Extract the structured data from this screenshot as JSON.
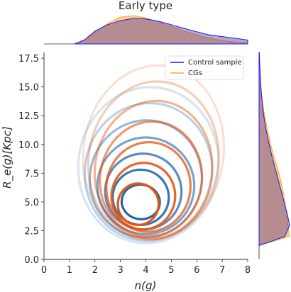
{
  "chart_data": {
    "type": "contour",
    "title": "Early type",
    "xlabel": "n(g)",
    "ylabel": "R_e(g)[Kpc]",
    "xlim": [
      0,
      8
    ],
    "ylim": [
      0,
      18
    ],
    "x_ticks": [
      "0",
      "1",
      "2",
      "3",
      "4",
      "5",
      "6",
      "7",
      "8"
    ],
    "y_ticks": [
      "0.0",
      "2.5",
      "5.0",
      "7.5",
      "10.0",
      "12.5",
      "15.0",
      "17.5"
    ],
    "legend": {
      "placement": "top-right",
      "entries": [
        {
          "label": "Control sample",
          "color": "#1a1aff"
        },
        {
          "label": "CGs",
          "color": "#ffa726"
        }
      ]
    },
    "series": [
      {
        "name": "Control sample",
        "color": "#2166ac",
        "kde_levels": [
          {
            "cx": 3.8,
            "cy": 5.0,
            "rx": 0.75,
            "ry": 1.5,
            "opacity": 1.0
          },
          {
            "cx": 3.8,
            "cy": 5.4,
            "rx": 1.1,
            "ry": 2.4,
            "opacity": 0.9
          },
          {
            "cx": 3.9,
            "cy": 5.9,
            "rx": 1.5,
            "ry": 3.3,
            "opacity": 0.75
          },
          {
            "cx": 4.0,
            "cy": 6.4,
            "rx": 1.9,
            "ry": 4.2,
            "opacity": 0.6
          },
          {
            "cx": 4.0,
            "cy": 7.0,
            "rx": 2.2,
            "ry": 5.1,
            "opacity": 0.45
          },
          {
            "cx": 4.1,
            "cy": 7.6,
            "rx": 2.5,
            "ry": 6.0,
            "opacity": 0.3
          },
          {
            "cx": 4.1,
            "cy": 8.2,
            "rx": 2.75,
            "ry": 6.8,
            "opacity": 0.18
          }
        ]
      },
      {
        "name": "CGs",
        "color": "#e6550d",
        "kde_levels": [
          {
            "cx": 3.7,
            "cy": 4.8,
            "rx": 0.8,
            "ry": 1.8,
            "opacity": 1.0
          },
          {
            "cx": 3.9,
            "cy": 5.5,
            "rx": 1.25,
            "ry": 2.9,
            "opacity": 0.9
          },
          {
            "cx": 4.1,
            "cy": 6.3,
            "rx": 1.65,
            "ry": 3.9,
            "opacity": 0.75
          },
          {
            "cx": 4.2,
            "cy": 7.0,
            "rx": 2.0,
            "ry": 5.0,
            "opacity": 0.6
          },
          {
            "cx": 4.3,
            "cy": 7.8,
            "rx": 2.3,
            "ry": 6.0,
            "opacity": 0.45
          },
          {
            "cx": 4.3,
            "cy": 8.6,
            "rx": 2.55,
            "ry": 6.9,
            "opacity": 0.3
          },
          {
            "cx": 4.3,
            "cy": 9.3,
            "rx": 2.75,
            "ry": 7.6,
            "opacity": 0.18
          }
        ]
      }
    ],
    "marginal_x": {
      "x": [
        1.2,
        1.6,
        2.0,
        2.5,
        3.0,
        3.5,
        4.0,
        4.5,
        5.0,
        5.5,
        6.0,
        6.5,
        7.0,
        7.5,
        8.0
      ],
      "control": [
        0.0,
        0.15,
        0.45,
        0.68,
        0.82,
        0.9,
        0.88,
        0.8,
        0.68,
        0.55,
        0.43,
        0.32,
        0.26,
        0.2,
        0.14
      ],
      "cgs": [
        0.0,
        0.14,
        0.42,
        0.72,
        0.95,
        1.0,
        0.92,
        0.78,
        0.62,
        0.45,
        0.32,
        0.2,
        0.12,
        0.07,
        0.04
      ]
    },
    "marginal_y": {
      "y": [
        1.2,
        2.0,
        3.0,
        4.0,
        5.0,
        6.0,
        7.0,
        8.0,
        9.0,
        10.0,
        11.0,
        12.0,
        13.0,
        14.0,
        15.0,
        16.0,
        17.0,
        18.0
      ],
      "control": [
        0.0,
        0.85,
        1.0,
        0.92,
        0.82,
        0.72,
        0.62,
        0.52,
        0.42,
        0.33,
        0.25,
        0.18,
        0.13,
        0.09,
        0.06,
        0.04,
        0.02,
        0.01
      ],
      "cgs": [
        0.0,
        1.0,
        0.95,
        0.9,
        0.85,
        0.78,
        0.7,
        0.6,
        0.48,
        0.38,
        0.3,
        0.22,
        0.15,
        0.1,
        0.06,
        0.04,
        0.02,
        0.01
      ]
    }
  }
}
